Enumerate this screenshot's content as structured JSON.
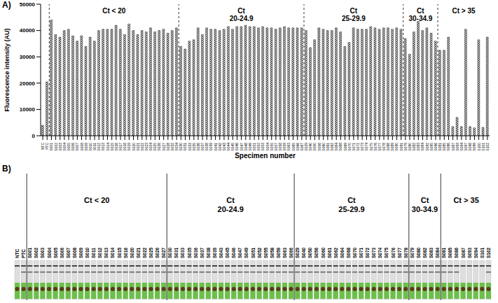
{
  "chart_data": {
    "type": "bar",
    "panel_label": "A)",
    "x_label": "Specimen number",
    "y_label": "Fluorescence intensity (AU)",
    "color": "#222222",
    "ylim": [
      0,
      50000
    ],
    "yticks": [
      0,
      10000,
      20000,
      30000,
      40000,
      50000
    ],
    "grid": false,
    "categories": [
      "NTC",
      "PTC",
      "S001",
      "S002",
      "S003",
      "S004",
      "S005",
      "S006",
      "S007",
      "S008",
      "S009",
      "S010",
      "S011",
      "S012",
      "S013",
      "S014",
      "S015",
      "S016",
      "S017",
      "S018",
      "S019",
      "S020",
      "S021",
      "S022",
      "S023",
      "S024",
      "S025",
      "S026",
      "S027",
      "S028",
      "S032",
      "S034",
      "S030",
      "S031",
      "S033",
      "S035",
      "S036",
      "S037",
      "S038",
      "S039",
      "S041",
      "S042",
      "S043",
      "S044",
      "S045",
      "S046",
      "S047",
      "S048",
      "S049",
      "S051",
      "S052",
      "S053",
      "S054",
      "S055",
      "S057",
      "S058",
      "S059",
      "S063",
      "S065",
      "S066",
      "S067",
      "S029",
      "S040",
      "S050",
      "S056",
      "S060",
      "S061",
      "S062",
      "S064",
      "S068",
      "S069",
      "S070",
      "S071",
      "S072",
      "S073",
      "S074",
      "S075",
      "S076",
      "S077",
      "S078",
      "S088",
      "S089",
      "S090",
      "S091",
      "S079",
      "S080",
      "S082",
      "S083",
      "S084",
      "S092",
      "S095",
      "S096",
      "S081",
      "S085",
      "S086",
      "S087",
      "S093",
      "S094",
      "S097",
      "S098",
      "S099",
      "S100",
      "S101",
      "S102"
    ],
    "values": [
      4000,
      20500,
      44000,
      38500,
      37500,
      40000,
      40500,
      38000,
      36000,
      38000,
      34000,
      37500,
      36000,
      40000,
      40500,
      40500,
      40500,
      42000,
      40500,
      38500,
      42500,
      40000,
      38500,
      40000,
      39500,
      41000,
      39500,
      40000,
      40500,
      39000,
      40000,
      41000,
      34000,
      33000,
      36000,
      36500,
      41000,
      38500,
      41000,
      40500,
      40500,
      40000,
      40500,
      41500,
      40500,
      41500,
      41500,
      42000,
      41500,
      41500,
      41000,
      41500,
      41000,
      41000,
      40500,
      41000,
      41500,
      41000,
      41000,
      41000,
      41000,
      40000,
      33500,
      36500,
      41000,
      40500,
      40000,
      40000,
      41000,
      39500,
      34000,
      35500,
      41000,
      40500,
      40500,
      40500,
      41500,
      41000,
      40500,
      41000,
      41000,
      40500,
      41000,
      40500,
      37000,
      31000,
      39500,
      43500,
      40000,
      41000,
      39000,
      36000,
      32500,
      32500,
      37500,
      3500,
      7000,
      3500,
      40500,
      3500,
      3000,
      36500,
      3200,
      37500
    ],
    "groups": [
      {
        "label": "Ct < 20",
        "first": "S001",
        "last": "S034"
      },
      {
        "label": "Ct 20-24.9",
        "first": "S030",
        "last": "S067"
      },
      {
        "label": "Ct 25-29.9",
        "first": "S029",
        "last": "S091"
      },
      {
        "label": "Ct 30-34.9",
        "first": "S079",
        "last": "S096"
      },
      {
        "label": "Ct > 35",
        "first": "S081",
        "last": "S102"
      }
    ]
  },
  "image_panel": {
    "panel_label": "B)",
    "strips": [
      {
        "label": "NTC",
        "test_line": false
      },
      {
        "label": "PTC",
        "test_line": true
      },
      {
        "label": "S001",
        "test_line": true
      },
      {
        "label": "S002",
        "test_line": true
      },
      {
        "label": "S003",
        "test_line": true
      },
      {
        "label": "S004",
        "test_line": true
      },
      {
        "label": "S005",
        "test_line": true
      },
      {
        "label": "S006",
        "test_line": true
      },
      {
        "label": "S007",
        "test_line": true
      },
      {
        "label": "S008",
        "test_line": true
      },
      {
        "label": "S009",
        "test_line": true
      },
      {
        "label": "S010",
        "test_line": true
      },
      {
        "label": "S011",
        "test_line": true
      },
      {
        "label": "S012",
        "test_line": true
      },
      {
        "label": "S013",
        "test_line": true
      },
      {
        "label": "S014",
        "test_line": true
      },
      {
        "label": "S015",
        "test_line": true
      },
      {
        "label": "S016",
        "test_line": true
      },
      {
        "label": "S020",
        "test_line": true
      },
      {
        "label": "S021",
        "test_line": true
      },
      {
        "label": "S022",
        "test_line": true
      },
      {
        "label": "S025",
        "test_line": true
      },
      {
        "label": "S026",
        "test_line": true
      },
      {
        "label": "S027",
        "test_line": true
      },
      {
        "label": "S030",
        "test_line": true
      },
      {
        "label": "S031",
        "test_line": true
      },
      {
        "label": "S033",
        "test_line": true
      },
      {
        "label": "S035",
        "test_line": true
      },
      {
        "label": "S036",
        "test_line": true
      },
      {
        "label": "S037",
        "test_line": true
      },
      {
        "label": "S038",
        "test_line": true
      },
      {
        "label": "S039",
        "test_line": true
      },
      {
        "label": "S043",
        "test_line": true
      },
      {
        "label": "S045",
        "test_line": true
      },
      {
        "label": "S046",
        "test_line": true
      },
      {
        "label": "S047",
        "test_line": true
      },
      {
        "label": "S049",
        "test_line": true
      },
      {
        "label": "S051",
        "test_line": true
      },
      {
        "label": "S052",
        "test_line": true
      },
      {
        "label": "S055",
        "test_line": true
      },
      {
        "label": "S058",
        "test_line": true
      },
      {
        "label": "S059",
        "test_line": true
      },
      {
        "label": "S063",
        "test_line": true
      },
      {
        "label": "S066",
        "test_line": true
      },
      {
        "label": "S029",
        "test_line": true
      },
      {
        "label": "S040",
        "test_line": true
      },
      {
        "label": "S050",
        "test_line": true
      },
      {
        "label": "S056",
        "test_line": true
      },
      {
        "label": "S060",
        "test_line": true
      },
      {
        "label": "S061",
        "test_line": true
      },
      {
        "label": "S062",
        "test_line": true
      },
      {
        "label": "S064",
        "test_line": true
      },
      {
        "label": "S068",
        "test_line": true
      },
      {
        "label": "S070",
        "test_line": true
      },
      {
        "label": "S071",
        "test_line": true
      },
      {
        "label": "S072",
        "test_line": true
      },
      {
        "label": "S073",
        "test_line": true
      },
      {
        "label": "S074",
        "test_line": true
      },
      {
        "label": "S075",
        "test_line": true
      },
      {
        "label": "S076",
        "test_line": true
      },
      {
        "label": "S077",
        "test_line": true
      },
      {
        "label": "S078",
        "test_line": true
      },
      {
        "label": "S079",
        "test_line": true
      },
      {
        "label": "S080",
        "test_line": true
      },
      {
        "label": "S082",
        "test_line": true
      },
      {
        "label": "S083",
        "test_line": true
      },
      {
        "label": "S084",
        "test_line": true
      },
      {
        "label": "S081",
        "test_line": true
      },
      {
        "label": "S085",
        "test_line": true
      },
      {
        "label": "S086",
        "test_line": true
      },
      {
        "label": "S087",
        "test_line": false
      },
      {
        "label": "S093",
        "test_line": false
      },
      {
        "label": "S094",
        "test_line": false
      },
      {
        "label": "S101",
        "test_line": false
      },
      {
        "label": "S102",
        "test_line": true
      }
    ],
    "groups": [
      {
        "label": "Ct < 20",
        "first": "S001",
        "last": "S027"
      },
      {
        "label": "Ct 20-24.9",
        "first": "S030",
        "last": "S066"
      },
      {
        "label": "Ct 25-29.9",
        "first": "S029",
        "last": "S078"
      },
      {
        "label": "Ct 30-34.9",
        "first": "S079",
        "last": "S084"
      },
      {
        "label": "Ct > 35",
        "first": "S081",
        "last": "S102"
      }
    ]
  }
}
